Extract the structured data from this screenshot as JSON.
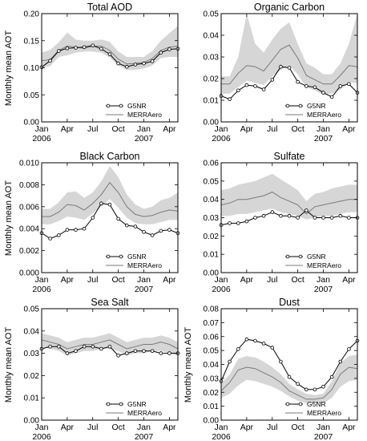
{
  "figure": {
    "legend_labels": [
      "G5NR",
      "MERRAero"
    ],
    "ylabel": "Monthly mean AOT",
    "x_tick_labels": [
      "Jan",
      "Apr",
      "Jul",
      "Oct",
      "Jan",
      "Apr"
    ],
    "x_year_labels": [
      "2006",
      "2007"
    ]
  },
  "chart_data": [
    {
      "type": "line",
      "title": "Total AOD",
      "ylabel": "Monthly mean AOT",
      "x": [
        "Jan 2006",
        "Feb 2006",
        "Mar 2006",
        "Apr 2006",
        "May 2006",
        "Jun 2006",
        "Jul 2006",
        "Aug 2006",
        "Sep 2006",
        "Oct 2006",
        "Nov 2006",
        "Dec 2006",
        "Jan 2007",
        "Feb 2007",
        "Mar 2007",
        "Apr 2007",
        "May 2007"
      ],
      "ylim": [
        0,
        0.2
      ],
      "yticks": [
        "0.00",
        "0.05",
        "0.10",
        "0.15",
        "0.20"
      ],
      "legend": "bottom-right",
      "series": [
        {
          "name": "G5NR",
          "values": [
            0.101,
            0.113,
            0.131,
            0.136,
            0.137,
            0.138,
            0.141,
            0.135,
            0.125,
            0.108,
            0.102,
            0.106,
            0.108,
            0.112,
            0.128,
            0.134,
            0.135
          ]
        },
        {
          "name": "MERRAero",
          "values": [
            0.113,
            0.115,
            0.132,
            0.14,
            0.138,
            0.136,
            0.14,
            0.14,
            0.132,
            0.116,
            0.107,
            0.108,
            0.11,
            0.117,
            0.132,
            0.138,
            0.14
          ],
          "band_lower": [
            0.1,
            0.103,
            0.12,
            0.123,
            0.128,
            0.13,
            0.13,
            0.128,
            0.119,
            0.104,
            0.096,
            0.096,
            0.099,
            0.104,
            0.118,
            0.12,
            0.12
          ],
          "band_upper": [
            0.128,
            0.133,
            0.147,
            0.165,
            0.152,
            0.15,
            0.15,
            0.152,
            0.148,
            0.13,
            0.12,
            0.12,
            0.12,
            0.131,
            0.15,
            0.164,
            0.177
          ]
        }
      ]
    },
    {
      "type": "line",
      "title": "Organic Carbon",
      "ylabel": "",
      "x": [
        "Jan 2006",
        "Feb 2006",
        "Mar 2006",
        "Apr 2006",
        "May 2006",
        "Jun 2006",
        "Jul 2006",
        "Aug 2006",
        "Sep 2006",
        "Oct 2006",
        "Nov 2006",
        "Dec 2006",
        "Jan 2007",
        "Feb 2007",
        "Mar 2007",
        "Apr 2007",
        "May 2007"
      ],
      "ylim": [
        0,
        0.05
      ],
      "yticks": [
        "0.00",
        "0.01",
        "0.02",
        "0.03",
        "0.04",
        "0.05"
      ],
      "legend": "bottom-right",
      "series": [
        {
          "name": "G5NR",
          "values": [
            0.012,
            0.0105,
            0.0145,
            0.017,
            0.0165,
            0.015,
            0.0195,
            0.0255,
            0.025,
            0.0185,
            0.0165,
            0.016,
            0.0135,
            0.0115,
            0.0165,
            0.0175,
            0.0135
          ]
        },
        {
          "name": "MERRAero",
          "values": [
            0.0175,
            0.0175,
            0.0225,
            0.026,
            0.0255,
            0.0235,
            0.0285,
            0.0335,
            0.0355,
            0.0295,
            0.0215,
            0.0195,
            0.0175,
            0.0175,
            0.0215,
            0.026,
            0.0255
          ],
          "band_lower": [
            0.013,
            0.013,
            0.016,
            0.019,
            0.018,
            0.017,
            0.021,
            0.024,
            0.026,
            0.022,
            0.016,
            0.0145,
            0.0125,
            0.013,
            0.015,
            0.018,
            0.018
          ],
          "band_upper": [
            0.021,
            0.021,
            0.03,
            0.05,
            0.036,
            0.032,
            0.038,
            0.043,
            0.046,
            0.036,
            0.027,
            0.025,
            0.022,
            0.022,
            0.027,
            0.036,
            0.05
          ]
        }
      ]
    },
    {
      "type": "line",
      "title": "Black Carbon",
      "ylabel": "Monthly mean AOT",
      "x": [
        "Jan 2006",
        "Feb 2006",
        "Mar 2006",
        "Apr 2006",
        "May 2006",
        "Jun 2006",
        "Jul 2006",
        "Aug 2006",
        "Sep 2006",
        "Oct 2006",
        "Nov 2006",
        "Dec 2006",
        "Jan 2007",
        "Feb 2007",
        "Mar 2007",
        "Apr 2007",
        "May 2007"
      ],
      "ylim": [
        0,
        0.01
      ],
      "yticks": [
        "0.000",
        "0.002",
        "0.004",
        "0.006",
        "0.008",
        "0.010"
      ],
      "legend": "bottom-right",
      "series": [
        {
          "name": "G5NR",
          "values": [
            0.0036,
            0.0031,
            0.0034,
            0.0039,
            0.0039,
            0.004,
            0.005,
            0.0063,
            0.0062,
            0.0049,
            0.0043,
            0.0042,
            0.0037,
            0.0034,
            0.0038,
            0.0039,
            0.0036
          ]
        },
        {
          "name": "MERRAero",
          "values": [
            0.0051,
            0.0051,
            0.0055,
            0.0062,
            0.0061,
            0.0057,
            0.0063,
            0.0071,
            0.0082,
            0.0073,
            0.006,
            0.0053,
            0.0051,
            0.0052,
            0.0055,
            0.0057,
            0.0056
          ],
          "band_lower": [
            0.0044,
            0.0044,
            0.0047,
            0.0051,
            0.005,
            0.0048,
            0.0054,
            0.006,
            0.0067,
            0.0059,
            0.005,
            0.0045,
            0.0044,
            0.0044,
            0.0046,
            0.0048,
            0.0048
          ],
          "band_upper": [
            0.0058,
            0.0058,
            0.0064,
            0.0073,
            0.0074,
            0.0068,
            0.0073,
            0.0083,
            0.0097,
            0.0087,
            0.0071,
            0.0062,
            0.0058,
            0.006,
            0.0066,
            0.0068,
            0.0073
          ]
        }
      ]
    },
    {
      "type": "line",
      "title": "Sulfate",
      "ylabel": "",
      "x": [
        "Jan 2006",
        "Feb 2006",
        "Mar 2006",
        "Apr 2006",
        "May 2006",
        "Jun 2006",
        "Jul 2006",
        "Aug 2006",
        "Sep 2006",
        "Oct 2006",
        "Nov 2006",
        "Dec 2006",
        "Jan 2007",
        "Feb 2007",
        "Mar 2007",
        "Apr 2007",
        "May 2007"
      ],
      "ylim": [
        0,
        0.06
      ],
      "yticks": [
        "0.00",
        "0.01",
        "0.02",
        "0.03",
        "0.04",
        "0.05",
        "0.06"
      ],
      "legend": "bottom-right",
      "series": [
        {
          "name": "G5NR",
          "values": [
            0.026,
            0.027,
            0.027,
            0.028,
            0.03,
            0.031,
            0.033,
            0.031,
            0.031,
            0.03,
            0.034,
            0.03,
            0.03,
            0.03,
            0.031,
            0.03,
            0.03
          ]
        },
        {
          "name": "MERRAero",
          "values": [
            0.037,
            0.038,
            0.04,
            0.04,
            0.041,
            0.042,
            0.044,
            0.041,
            0.039,
            0.037,
            0.032,
            0.036,
            0.037,
            0.038,
            0.039,
            0.04,
            0.04
          ],
          "band_lower": [
            0.031,
            0.031,
            0.032,
            0.032,
            0.033,
            0.034,
            0.035,
            0.033,
            0.032,
            0.031,
            0.029,
            0.03,
            0.031,
            0.031,
            0.032,
            0.033,
            0.033
          ],
          "band_upper": [
            0.045,
            0.046,
            0.048,
            0.049,
            0.05,
            0.052,
            0.054,
            0.051,
            0.048,
            0.045,
            0.039,
            0.043,
            0.044,
            0.046,
            0.047,
            0.048,
            0.048
          ]
        }
      ]
    },
    {
      "type": "line",
      "title": "Sea Salt",
      "ylabel": "Monthly mean AOT",
      "x": [
        "Jan 2006",
        "Feb 2006",
        "Mar 2006",
        "Apr 2006",
        "May 2006",
        "Jun 2006",
        "Jul 2006",
        "Aug 2006",
        "Sep 2006",
        "Oct 2006",
        "Nov 2006",
        "Dec 2006",
        "Jan 2007",
        "Feb 2007",
        "Mar 2007",
        "Apr 2007",
        "May 2007"
      ],
      "ylim": [
        0,
        0.05
      ],
      "yticks": [
        "0.00",
        "0.01",
        "0.02",
        "0.03",
        "0.04",
        "0.05"
      ],
      "legend": "bottom-right",
      "series": [
        {
          "name": "G5NR",
          "values": [
            0.032,
            0.033,
            0.033,
            0.03,
            0.031,
            0.033,
            0.033,
            0.032,
            0.033,
            0.029,
            0.03,
            0.031,
            0.031,
            0.031,
            0.03,
            0.03,
            0.03
          ]
        },
        {
          "name": "MERRAero",
          "values": [
            0.036,
            0.035,
            0.034,
            0.032,
            0.033,
            0.034,
            0.034,
            0.035,
            0.036,
            0.034,
            0.032,
            0.033,
            0.034,
            0.034,
            0.035,
            0.034,
            0.032
          ],
          "band_lower": [
            0.033,
            0.032,
            0.031,
            0.029,
            0.03,
            0.031,
            0.031,
            0.032,
            0.032,
            0.031,
            0.029,
            0.03,
            0.03,
            0.031,
            0.031,
            0.03,
            0.029
          ],
          "band_upper": [
            0.039,
            0.038,
            0.037,
            0.035,
            0.036,
            0.037,
            0.037,
            0.038,
            0.039,
            0.037,
            0.035,
            0.036,
            0.037,
            0.037,
            0.038,
            0.037,
            0.035
          ]
        }
      ]
    },
    {
      "type": "line",
      "title": "Dust",
      "ylabel": "Monthly mean AOT",
      "x": [
        "Jan 2006",
        "Feb 2006",
        "Mar 2006",
        "Apr 2006",
        "May 2006",
        "Jun 2006",
        "Jul 2006",
        "Aug 2006",
        "Sep 2006",
        "Oct 2006",
        "Nov 2006",
        "Dec 2006",
        "Jan 2007",
        "Feb 2007",
        "Mar 2007",
        "Apr 2007",
        "May 2007"
      ],
      "ylim": [
        0,
        0.08
      ],
      "yticks": [
        "0.00",
        "0.01",
        "0.02",
        "0.03",
        "0.04",
        "0.05",
        "0.06",
        "0.07",
        "0.08"
      ],
      "legend": "bottom-right",
      "series": [
        {
          "name": "G5NR",
          "values": [
            0.028,
            0.042,
            0.051,
            0.058,
            0.057,
            0.055,
            0.052,
            0.042,
            0.031,
            0.026,
            0.022,
            0.022,
            0.024,
            0.031,
            0.042,
            0.051,
            0.057
          ]
        },
        {
          "name": "MERRAero",
          "values": [
            0.021,
            0.027,
            0.036,
            0.038,
            0.037,
            0.034,
            0.031,
            0.027,
            0.021,
            0.018,
            0.015,
            0.015,
            0.016,
            0.022,
            0.033,
            0.038,
            0.037
          ],
          "band_lower": [
            0.016,
            0.019,
            0.025,
            0.029,
            0.028,
            0.026,
            0.024,
            0.021,
            0.017,
            0.014,
            0.012,
            0.012,
            0.012,
            0.016,
            0.024,
            0.028,
            0.029
          ],
          "band_upper": [
            0.026,
            0.033,
            0.044,
            0.046,
            0.045,
            0.042,
            0.038,
            0.033,
            0.026,
            0.022,
            0.019,
            0.018,
            0.019,
            0.028,
            0.041,
            0.046,
            0.047
          ]
        }
      ]
    }
  ]
}
